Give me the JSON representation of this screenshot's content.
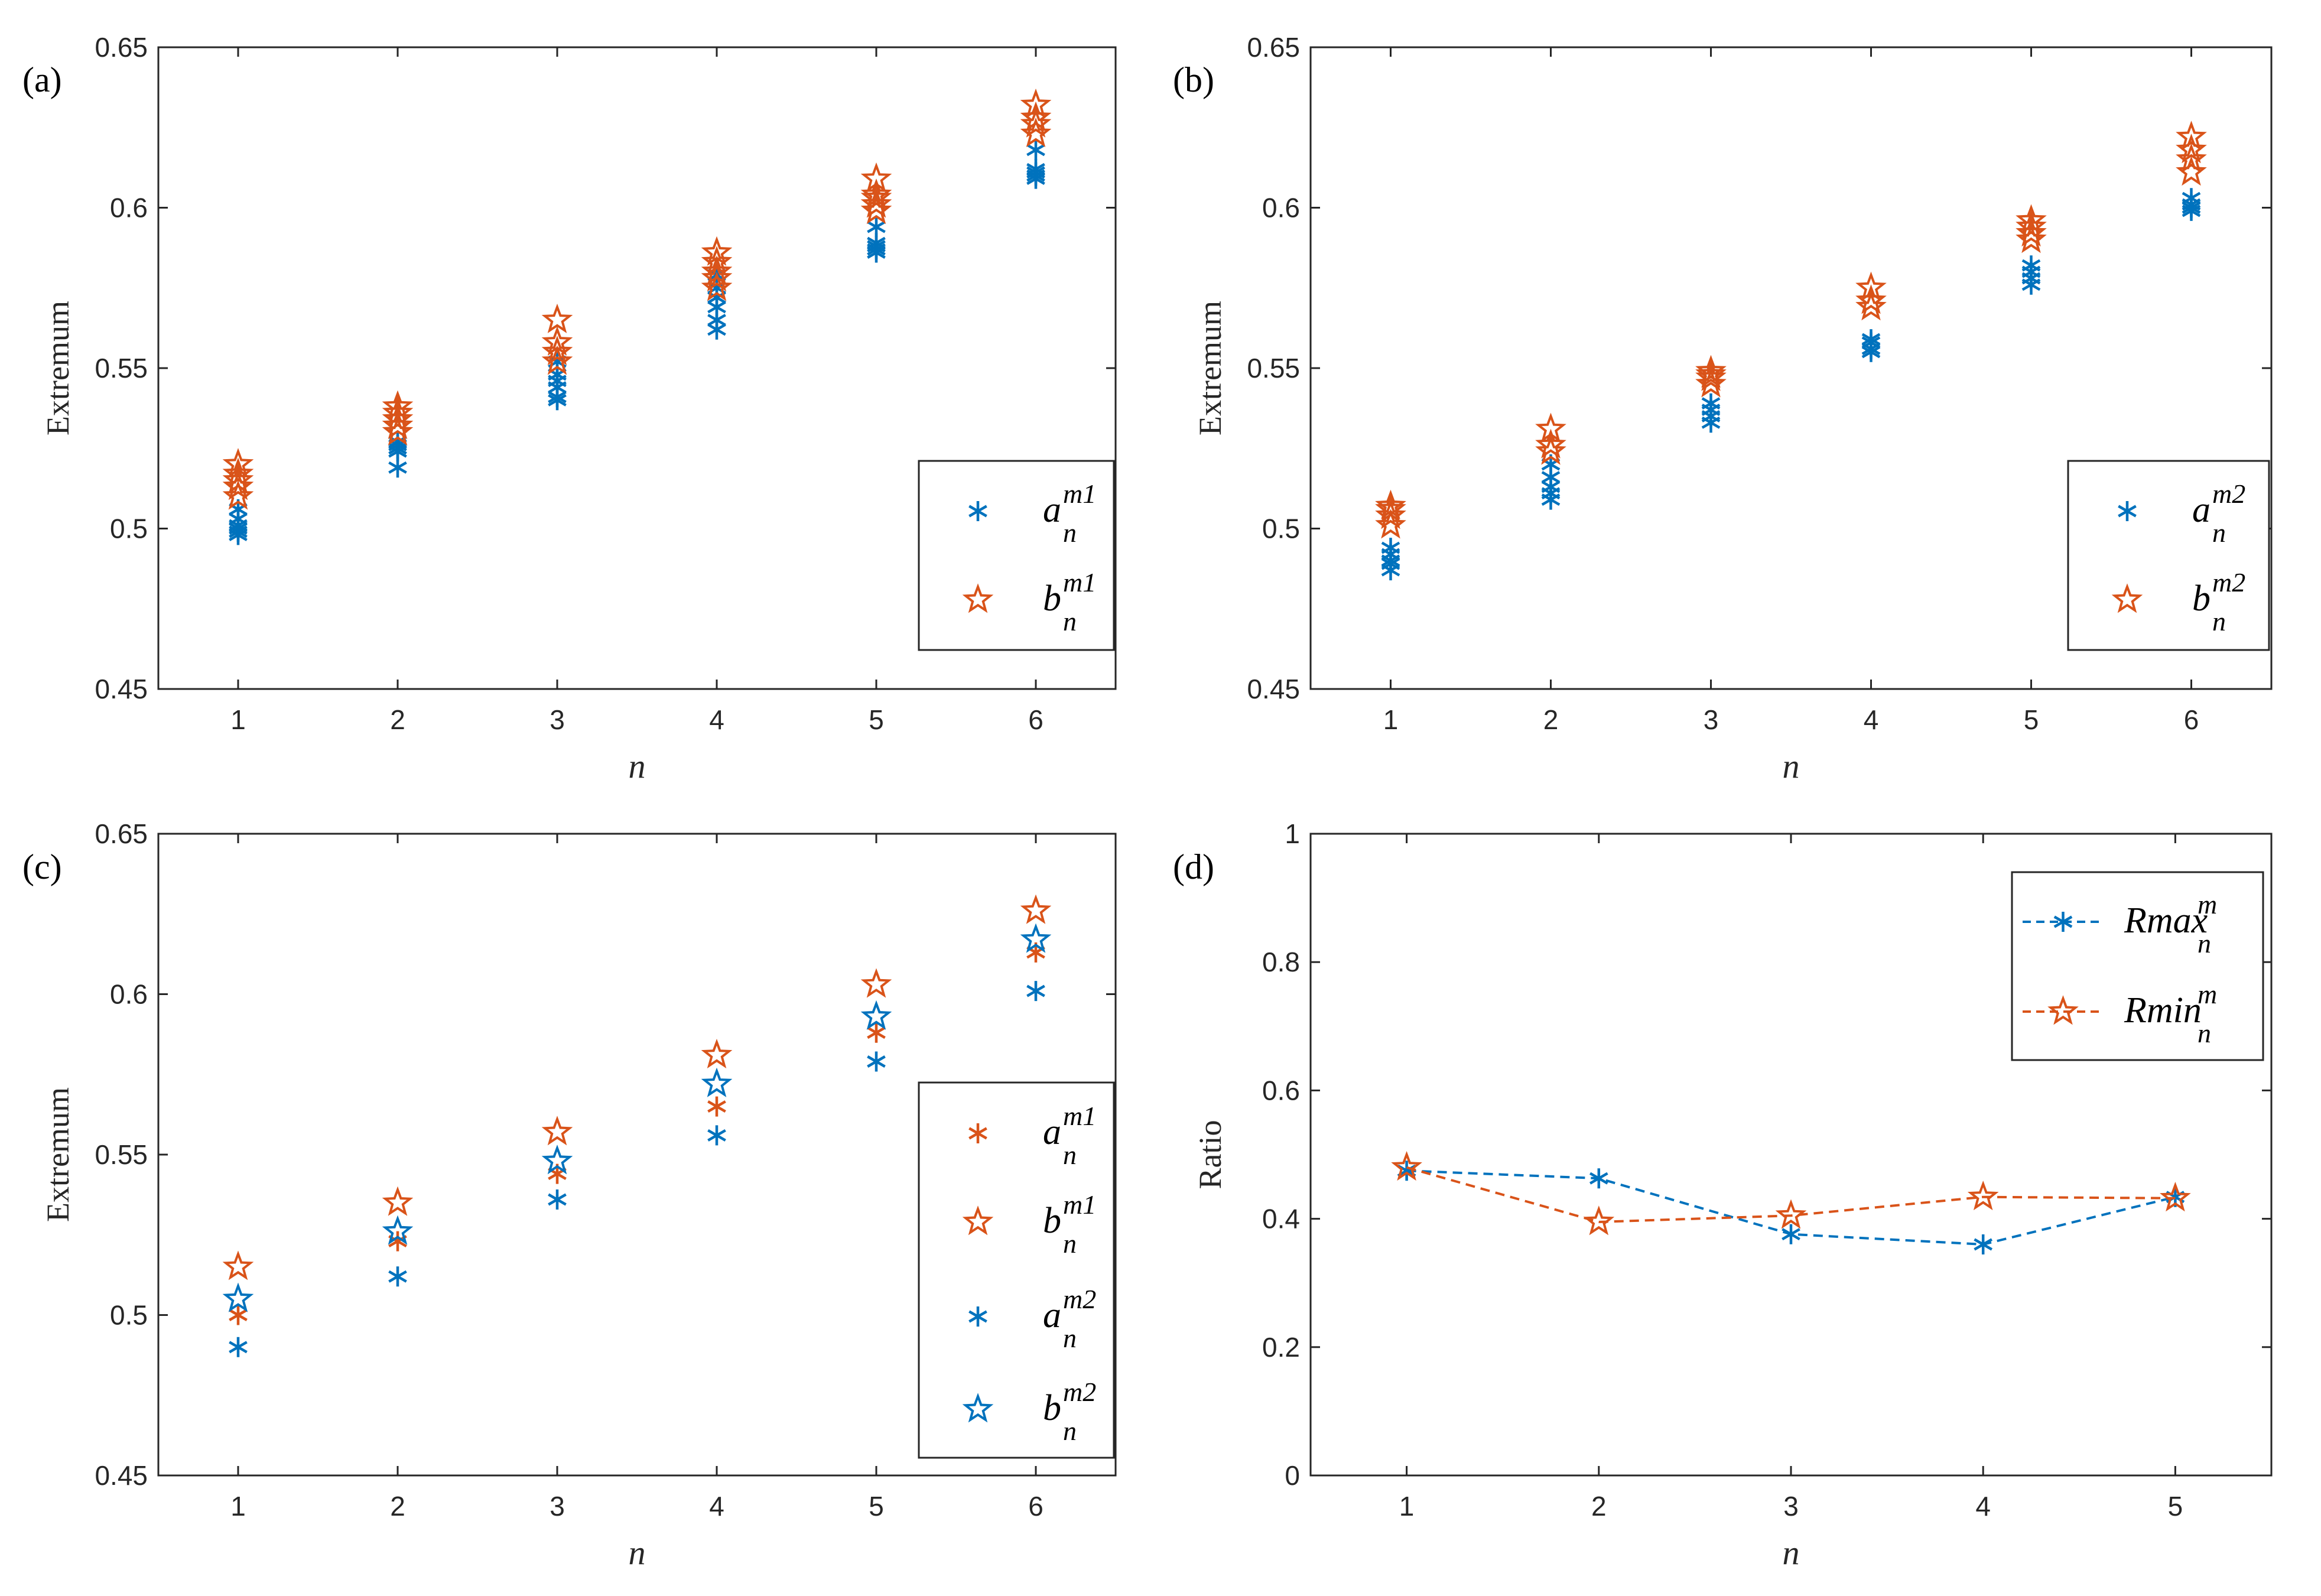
{
  "colors": {
    "blue": "#0072BD",
    "orange": "#D95319",
    "axis": "#262626"
  },
  "chart_data": [
    {
      "panel": "(a)",
      "type": "scatter",
      "xlabel": "n",
      "ylabel": "Extremum",
      "xlim": [
        0.5,
        6.5
      ],
      "ylim": [
        0.45,
        0.65
      ],
      "xticks": [
        "1",
        "2",
        "3",
        "4",
        "5",
        "6"
      ],
      "yticks": [
        "0.45",
        "0.5",
        "0.55",
        "0.6",
        "0.65"
      ],
      "legend_position": "right-middle",
      "series": [
        {
          "name": "a",
          "sup": "m1",
          "sub": "n",
          "color": "#0072BD",
          "marker": "asterisk",
          "x": [
            1,
            1,
            1,
            1,
            1,
            1,
            2,
            2,
            2,
            2,
            2,
            3,
            3,
            3,
            3,
            3,
            3,
            4,
            4,
            4,
            4,
            4,
            4,
            5,
            5,
            5,
            5,
            5,
            6,
            6,
            6,
            6,
            6
          ],
          "y": [
            0.498,
            0.499,
            0.5,
            0.501,
            0.503,
            0.506,
            0.519,
            0.524,
            0.525,
            0.526,
            0.527,
            0.54,
            0.541,
            0.544,
            0.546,
            0.548,
            0.552,
            0.562,
            0.565,
            0.569,
            0.572,
            0.575,
            0.579,
            0.586,
            0.587,
            0.588,
            0.589,
            0.594,
            0.609,
            0.61,
            0.611,
            0.612,
            0.618
          ]
        },
        {
          "name": "b",
          "sup": "m1",
          "sub": "n",
          "color": "#D95319",
          "marker": "star",
          "x": [
            1,
            1,
            1,
            1,
            1,
            2,
            2,
            2,
            2,
            2,
            3,
            3,
            3,
            3,
            4,
            4,
            4,
            4,
            4,
            5,
            5,
            5,
            5,
            5,
            6,
            6,
            6,
            6
          ],
          "y": [
            0.51,
            0.513,
            0.515,
            0.517,
            0.52,
            0.53,
            0.532,
            0.534,
            0.536,
            0.538,
            0.552,
            0.555,
            0.558,
            0.565,
            0.575,
            0.578,
            0.58,
            0.583,
            0.586,
            0.599,
            0.601,
            0.603,
            0.604,
            0.609,
            0.623,
            0.626,
            0.628,
            0.632
          ]
        }
      ]
    },
    {
      "panel": "(b)",
      "type": "scatter",
      "xlabel": "n",
      "ylabel": "Extremum",
      "xlim": [
        0.5,
        6.5
      ],
      "ylim": [
        0.45,
        0.65
      ],
      "xticks": [
        "1",
        "2",
        "3",
        "4",
        "5",
        "6"
      ],
      "yticks": [
        "0.45",
        "0.5",
        "0.55",
        "0.6",
        "0.65"
      ],
      "legend_position": "right-middle",
      "series": [
        {
          "name": "a",
          "sup": "m2",
          "sub": "n",
          "color": "#0072BD",
          "marker": "asterisk",
          "x": [
            1,
            1,
            1,
            1,
            1,
            2,
            2,
            2,
            2,
            2,
            3,
            3,
            3,
            3,
            4,
            4,
            4,
            4,
            5,
            5,
            5,
            5,
            6,
            6,
            6,
            6
          ],
          "y": [
            0.487,
            0.489,
            0.49,
            0.492,
            0.494,
            0.509,
            0.511,
            0.513,
            0.516,
            0.52,
            0.533,
            0.535,
            0.537,
            0.539,
            0.555,
            0.556,
            0.558,
            0.559,
            0.576,
            0.578,
            0.58,
            0.582,
            0.599,
            0.6,
            0.601,
            0.603
          ]
        },
        {
          "name": "b",
          "sup": "m2",
          "sub": "n",
          "color": "#D95319",
          "marker": "star",
          "x": [
            1,
            1,
            1,
            1,
            2,
            2,
            2,
            3,
            3,
            3,
            3,
            4,
            4,
            4,
            5,
            5,
            5,
            5,
            6,
            6,
            6,
            6
          ],
          "y": [
            0.501,
            0.504,
            0.506,
            0.507,
            0.524,
            0.526,
            0.531,
            0.545,
            0.547,
            0.548,
            0.549,
            0.569,
            0.571,
            0.575,
            0.59,
            0.592,
            0.594,
            0.596,
            0.611,
            0.615,
            0.618,
            0.622
          ]
        }
      ]
    },
    {
      "panel": "(c)",
      "type": "scatter",
      "xlabel": "n",
      "ylabel": "Extremum",
      "xlim": [
        0.5,
        6.5
      ],
      "ylim": [
        0.45,
        0.65
      ],
      "xticks": [
        "1",
        "2",
        "3",
        "4",
        "5",
        "6"
      ],
      "yticks": [
        "0.45",
        "0.5",
        "0.55",
        "0.6",
        "0.65"
      ],
      "legend_position": "right-middle",
      "series": [
        {
          "name": "a",
          "sup": "m1",
          "sub": "n",
          "color": "#D95319",
          "marker": "asterisk",
          "x": [
            1,
            2,
            3,
            4,
            5,
            6
          ],
          "y": [
            0.5,
            0.523,
            0.544,
            0.565,
            0.588,
            0.613
          ]
        },
        {
          "name": "b",
          "sup": "m1",
          "sub": "n",
          "color": "#D95319",
          "marker": "star",
          "x": [
            1,
            2,
            3,
            4,
            5,
            6
          ],
          "y": [
            0.515,
            0.535,
            0.557,
            0.581,
            0.603,
            0.626
          ]
        },
        {
          "name": "a",
          "sup": "m2",
          "sub": "n",
          "color": "#0072BD",
          "marker": "asterisk",
          "x": [
            1,
            2,
            3,
            4,
            5,
            6
          ],
          "y": [
            0.49,
            0.512,
            0.536,
            0.556,
            0.579,
            0.601
          ]
        },
        {
          "name": "b",
          "sup": "m2",
          "sub": "n",
          "color": "#0072BD",
          "marker": "star",
          "x": [
            1,
            2,
            3,
            4,
            5,
            6
          ],
          "y": [
            0.505,
            0.526,
            0.548,
            0.572,
            0.593,
            0.617
          ]
        }
      ]
    },
    {
      "panel": "(d)",
      "type": "line",
      "xlabel": "n",
      "ylabel": "Ratio",
      "xlim": [
        0.5,
        5.5
      ],
      "ylim": [
        0,
        1
      ],
      "xticks": [
        "1",
        "2",
        "3",
        "4",
        "5"
      ],
      "yticks": [
        "0",
        "0.2",
        "0.4",
        "0.6",
        "0.8",
        "1"
      ],
      "legend_position": "top-right",
      "series": [
        {
          "name": "Rmax",
          "sup": "m",
          "sub": "n",
          "color": "#0072BD",
          "marker": "asterisk",
          "linestyle": "dashed",
          "x": [
            1,
            2,
            3,
            4,
            5
          ],
          "y": [
            0.475,
            0.463,
            0.376,
            0.36,
            0.434
          ]
        },
        {
          "name": "Rmin",
          "sup": "m",
          "sub": "n",
          "color": "#D95319",
          "marker": "star",
          "linestyle": "dashed",
          "x": [
            1,
            2,
            3,
            4,
            5
          ],
          "y": [
            0.48,
            0.395,
            0.405,
            0.434,
            0.432
          ]
        }
      ]
    }
  ]
}
